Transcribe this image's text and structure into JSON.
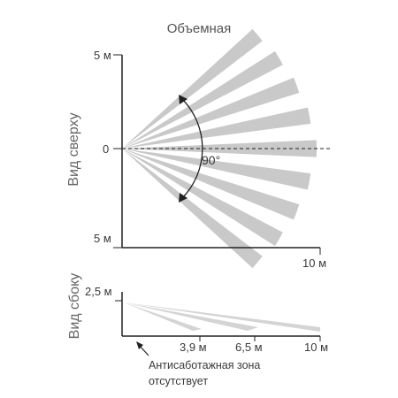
{
  "title": "Объемная",
  "top_view": {
    "label": "Вид сверху",
    "y_top_label": "5 м",
    "y_center_label": "0",
    "y_bottom_label": "5 м",
    "x_end_label": "10 м",
    "angle_label": "90°",
    "beam_count": 9,
    "beam_color": "#c9c9c9"
  },
  "side_view": {
    "label": "Вид сбоку",
    "height_label": "2,5 м",
    "distance_labels": [
      "3,9 м",
      "6,5 м",
      "10 м"
    ],
    "note_line1": "Антисаботажная зона",
    "note_line2": "отсутствует",
    "beam_color": "#d4d4d4"
  }
}
